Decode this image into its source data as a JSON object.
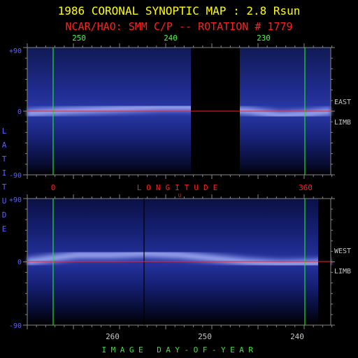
{
  "title": "1986 CORONAL SYNOPTIC MAP : 2.8 Rsun",
  "subtitle": "NCAR/HAO: SMM C/P -- ROTATION # 1779",
  "y_axis_label": "LATITUDE",
  "longitude_label": "LONGITUDE",
  "longitude_marker": "U",
  "day_axis_label": "IMAGE DAY-OF-YEAR",
  "colors": {
    "title": "#ffff00",
    "subtitle": "#ff2020",
    "top_ticks": "#40ff40",
    "lon_ticks": "#ff2020",
    "lat_ticks": "#6060ff",
    "side_labels": "#c8c8c8",
    "day_label": "#40e040",
    "grid_line_green": "#20e020",
    "equator_red": "#ff2020"
  },
  "chart_data": [
    {
      "type": "heatmap",
      "panel": "East limb",
      "side_label_1": "EAST",
      "side_label_2": "LIMB",
      "x_top_ticks": [
        "250",
        "240",
        "230"
      ],
      "x_bottom_ticks": [
        "0",
        "360"
      ],
      "y_ticks": [
        "+90",
        "0",
        "-90"
      ],
      "ylim": [
        -90,
        90
      ],
      "data_gap_longitude": [
        195,
        260
      ],
      "streamer_belt_latitude": [
        [
          0,
          -3
        ],
        [
          40,
          0
        ],
        [
          80,
          2
        ],
        [
          120,
          4
        ],
        [
          160,
          6
        ],
        [
          190,
          6
        ],
        [
          265,
          0
        ],
        [
          300,
          -6
        ],
        [
          330,
          -4
        ],
        [
          360,
          0
        ]
      ]
    },
    {
      "type": "heatmap",
      "panel": "West limb",
      "side_label_1": "WEST",
      "side_label_2": "LIMB",
      "x_bottom_ticks": [
        "260",
        "250",
        "240"
      ],
      "y_ticks": [
        "+90",
        "0",
        "-90"
      ],
      "ylim": [
        -90,
        90
      ],
      "streamer_belt_latitude": [
        [
          0,
          0
        ],
        [
          30,
          5
        ],
        [
          60,
          10
        ],
        [
          100,
          10
        ],
        [
          140,
          12
        ],
        [
          180,
          10
        ],
        [
          220,
          5
        ],
        [
          260,
          0
        ],
        [
          300,
          -3
        ],
        [
          340,
          -2
        ],
        [
          360,
          0
        ]
      ]
    }
  ]
}
